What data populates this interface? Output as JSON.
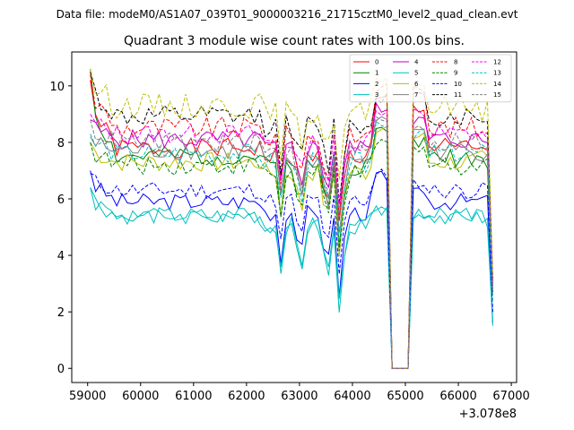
{
  "figure": {
    "suptitle": "Data file: modeM0/AS1A07_039T01_9000003216_21715cztM0_level2_quad_clean.evt"
  },
  "chart_data": {
    "type": "line",
    "title": "Quadrant 3 module wise count rates with 100.0s bins.",
    "xlabel": "",
    "ylabel": "",
    "x_offset_label": "+3.078e8",
    "xlim": [
      58700,
      67100
    ],
    "ylim": [
      -0.5,
      11.2
    ],
    "xticks": [
      59000,
      60000,
      61000,
      62000,
      63000,
      64000,
      65000,
      66000,
      67000
    ],
    "xtick_labels": [
      "59000",
      "60000",
      "61000",
      "62000",
      "63000",
      "64000",
      "65000",
      "66000",
      "67000"
    ],
    "yticks": [
      0,
      2,
      4,
      6,
      8,
      10
    ],
    "ytick_labels": [
      "0",
      "2",
      "4",
      "6",
      "8",
      "10"
    ],
    "legend_location": "upper right",
    "legend_columns": 4,
    "x_start": 59050,
    "bin_width": 100,
    "gap_start": 64650,
    "gap_end": 65150,
    "x_end": 66650,
    "series": [
      {
        "name": "0",
        "color": "#ff0000",
        "dash": "solid",
        "base": 7.8,
        "start": 10.2,
        "end": 3.0,
        "dip_depth": 1.8,
        "gap_edge_left": 9.5,
        "gap_edge_right": 9.2,
        "amp": 0.35,
        "seed": 1
      },
      {
        "name": "1",
        "color": "#008000",
        "dash": "solid",
        "base": 7.5,
        "start": 10.6,
        "end": 2.8,
        "dip_depth": 1.9,
        "gap_edge_left": 8.4,
        "gap_edge_right": 8.0,
        "amp": 0.35,
        "seed": 2
      },
      {
        "name": "2",
        "color": "#0000ff",
        "dash": "solid",
        "base": 5.9,
        "start": 7.0,
        "end": 1.6,
        "dip_depth": 2.2,
        "gap_edge_left": 6.8,
        "gap_edge_right": 6.2,
        "amp": 0.3,
        "seed": 3
      },
      {
        "name": "3",
        "color": "#00bfbf",
        "dash": "solid",
        "base": 5.4,
        "start": 6.4,
        "end": 1.5,
        "dip_depth": 2.0,
        "gap_edge_left": 5.6,
        "gap_edge_right": 5.5,
        "amp": 0.3,
        "seed": 4
      },
      {
        "name": "4",
        "color": "#bf00bf",
        "dash": "solid",
        "base": 8.1,
        "start": 8.8,
        "end": 2.9,
        "dip_depth": 1.7,
        "gap_edge_left": 9.2,
        "gap_edge_right": 8.8,
        "amp": 0.35,
        "seed": 5
      },
      {
        "name": "5",
        "color": "#00bfbf",
        "dash": "solid",
        "base": 5.4,
        "start": 6.4,
        "end": 1.7,
        "dip_depth": 2.0,
        "gap_edge_left": 5.8,
        "gap_edge_right": 5.4,
        "amp": 0.3,
        "seed": 6
      },
      {
        "name": "6",
        "color": "#bfbf00",
        "dash": "solid",
        "base": 7.3,
        "start": 8.0,
        "end": 2.6,
        "dip_depth": 2.0,
        "gap_edge_left": 8.5,
        "gap_edge_right": 8.2,
        "amp": 0.35,
        "seed": 7
      },
      {
        "name": "7",
        "color": "#808080",
        "dash": "solid",
        "base": 7.7,
        "start": 8.2,
        "end": 2.7,
        "dip_depth": 1.9,
        "gap_edge_left": 8.9,
        "gap_edge_right": 8.5,
        "amp": 0.35,
        "seed": 8
      },
      {
        "name": "8",
        "color": "#ff0000",
        "dash": "dashed",
        "base": 8.5,
        "start": 10.4,
        "end": 3.1,
        "dip_depth": 1.8,
        "gap_edge_left": 9.9,
        "gap_edge_right": 10.0,
        "amp": 0.4,
        "seed": 9
      },
      {
        "name": "9",
        "color": "#008000",
        "dash": "dashed",
        "base": 7.2,
        "start": 8.0,
        "end": 2.7,
        "dip_depth": 1.9,
        "gap_edge_left": 8.0,
        "gap_edge_right": 7.8,
        "amp": 0.35,
        "seed": 10
      },
      {
        "name": "10",
        "color": "#0000ff",
        "dash": "dashed",
        "base": 6.3,
        "start": 6.9,
        "end": 2.0,
        "dip_depth": 2.0,
        "gap_edge_left": 6.9,
        "gap_edge_right": 6.6,
        "amp": 0.3,
        "seed": 11
      },
      {
        "name": "11",
        "color": "#000000",
        "dash": "dashed",
        "base": 8.9,
        "start": 10.5,
        "end": 3.2,
        "dip_depth": 1.8,
        "gap_edge_left": 9.6,
        "gap_edge_right": 9.6,
        "amp": 0.4,
        "seed": 12
      },
      {
        "name": "12",
        "color": "#ff00ff",
        "dash": "dashed",
        "base": 8.3,
        "start": 9.0,
        "end": 3.0,
        "dip_depth": 1.7,
        "gap_edge_left": 9.1,
        "gap_edge_right": 9.0,
        "amp": 0.35,
        "seed": 13
      },
      {
        "name": "13",
        "color": "#00bfbf",
        "dash": "dashed",
        "base": 7.6,
        "start": 8.3,
        "end": 2.4,
        "dip_depth": 1.8,
        "gap_edge_left": 8.7,
        "gap_edge_right": 8.3,
        "amp": 0.35,
        "seed": 14
      },
      {
        "name": "14",
        "color": "#bfbf00",
        "dash": "dashed",
        "base": 9.3,
        "start": 10.6,
        "end": 3.3,
        "dip_depth": 1.6,
        "gap_edge_left": 10.2,
        "gap_edge_right": 10.0,
        "amp": 0.45,
        "seed": 15
      },
      {
        "name": "15",
        "color": "#808080",
        "dash": "dashed",
        "base": 8.0,
        "start": 8.8,
        "end": 2.8,
        "dip_depth": 1.8,
        "gap_edge_left": 8.8,
        "gap_edge_right": 8.6,
        "amp": 0.35,
        "seed": 16
      }
    ]
  }
}
